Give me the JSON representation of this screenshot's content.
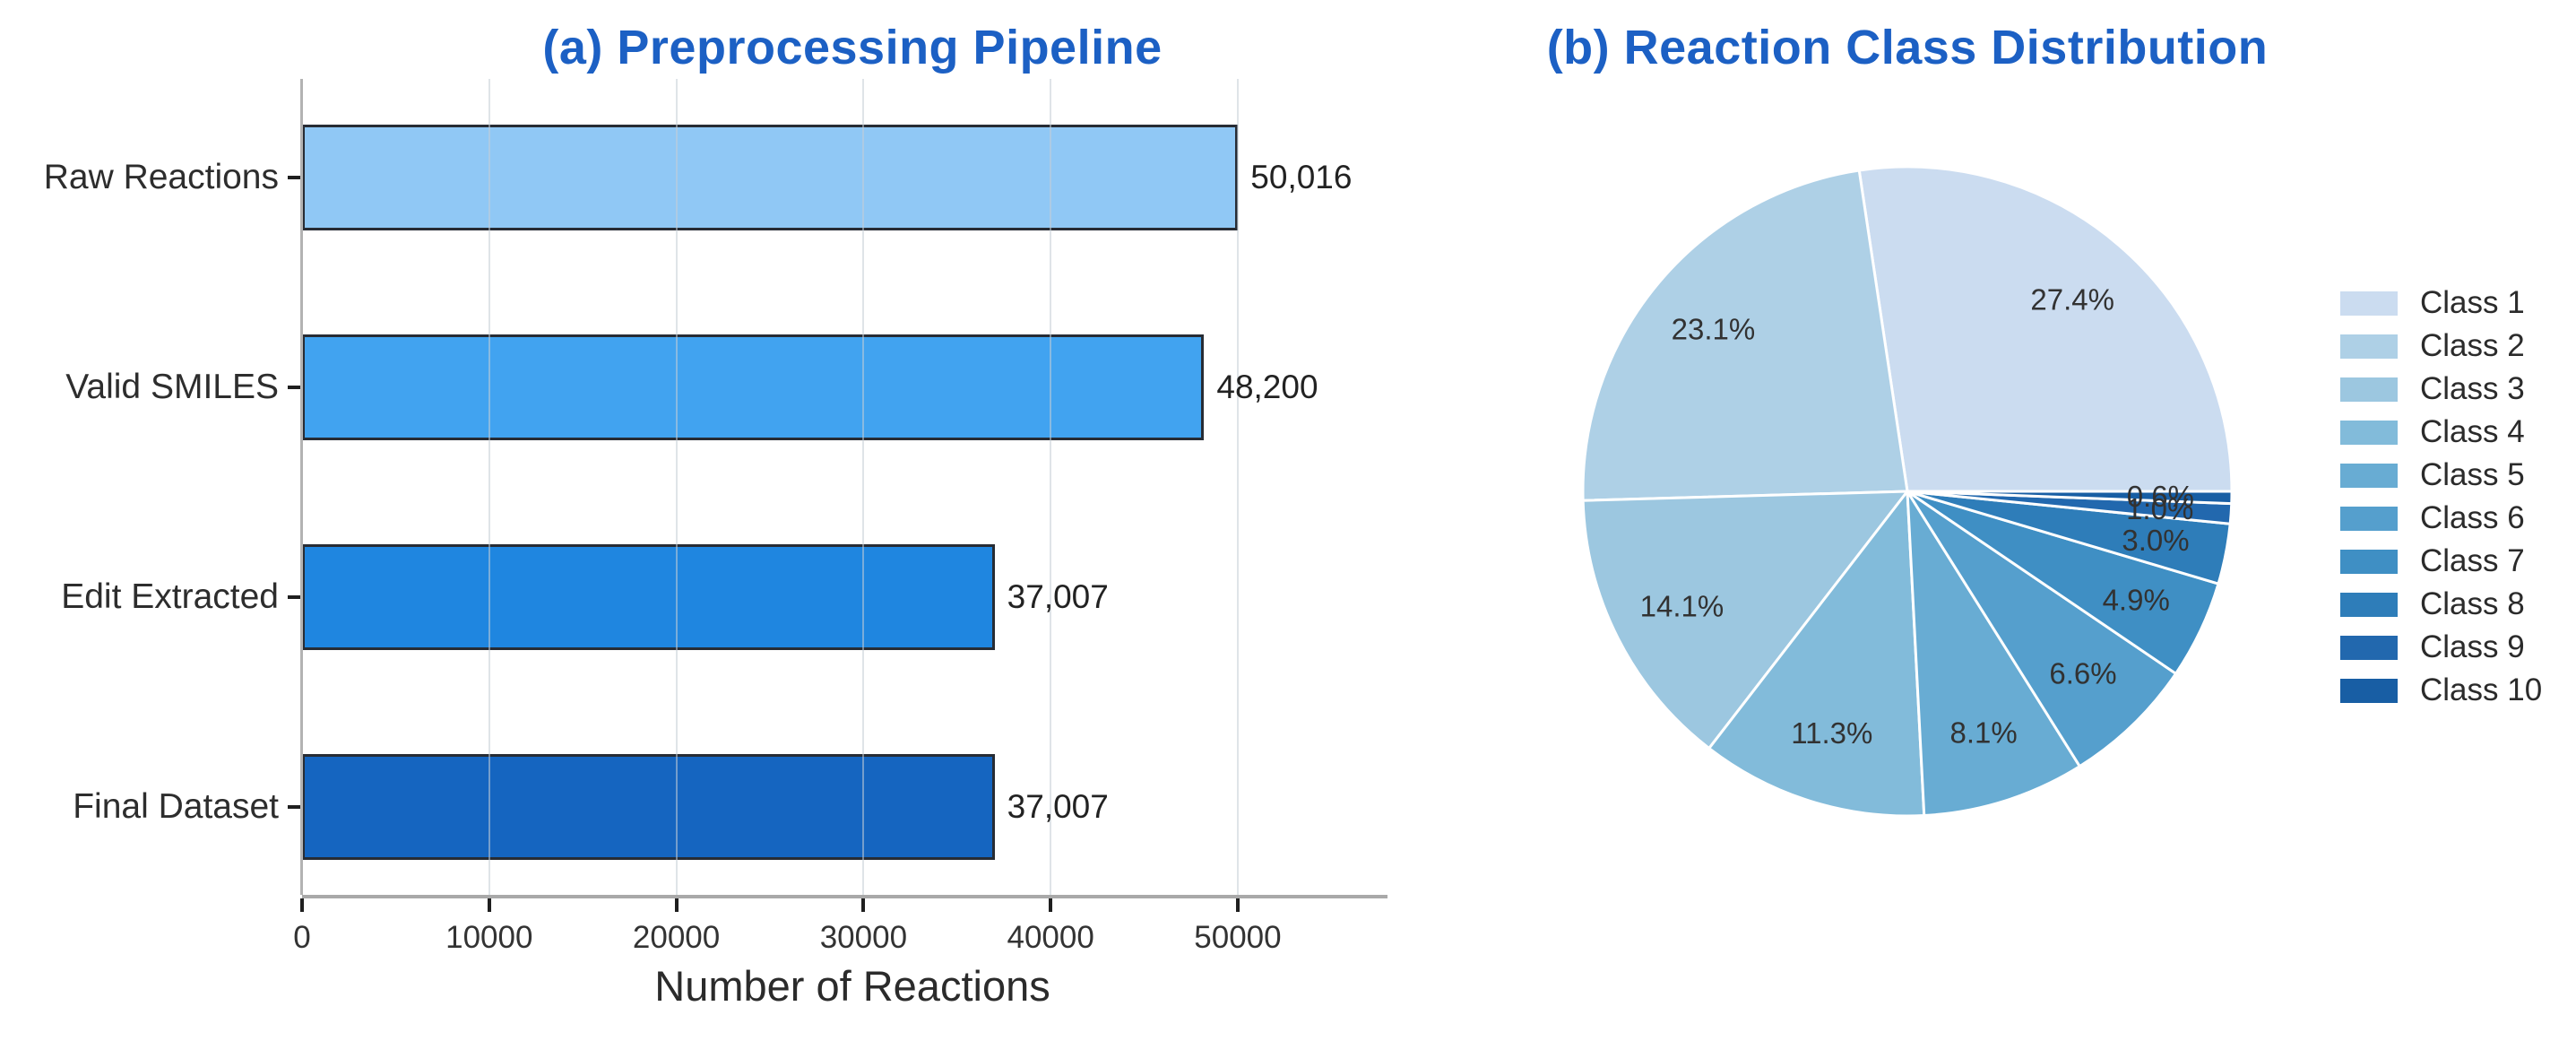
{
  "figure": {
    "background": "#ffffff",
    "title_color": "#1c60c4"
  },
  "chart_data": [
    {
      "type": "bar",
      "title": "(a) Preprocessing Pipeline",
      "orientation": "horizontal",
      "categories": [
        "Raw Reactions",
        "Valid SMILES",
        "Edit Extracted",
        "Final Dataset"
      ],
      "values": [
        50016,
        48200,
        37007,
        37007
      ],
      "value_labels": [
        "50,016",
        "48,200",
        "37,007",
        "37,007"
      ],
      "bar_colors": [
        "#90c8f5",
        "#41a3f0",
        "#1f86e0",
        "#1565c0"
      ],
      "bar_edge_color": "#272c34",
      "xlabel": "Number of Reactions",
      "xticks": [
        0,
        10000,
        20000,
        30000,
        40000,
        50000
      ],
      "xtick_labels": [
        "0",
        "10000",
        "20000",
        "30000",
        "40000",
        "50000"
      ],
      "xlim": [
        0,
        58000
      ],
      "grid": "vertical",
      "legend_position": "none"
    },
    {
      "type": "pie",
      "title": "(b) Reaction Class Distribution",
      "labels": [
        "Class 1",
        "Class 2",
        "Class 3",
        "Class 4",
        "Class 5",
        "Class 6",
        "Class 7",
        "Class 8",
        "Class 9",
        "Class 10"
      ],
      "values": [
        27.4,
        23.1,
        14.1,
        11.3,
        8.1,
        6.6,
        4.9,
        3.0,
        1.0,
        0.6
      ],
      "pct_labels": [
        "27.4%",
        "23.1%",
        "14.1%",
        "11.3%",
        "8.1%",
        "6.6%",
        "4.9%",
        "3.0%",
        "1.0%",
        "0.6%"
      ],
      "colors": [
        "#cbdcf0",
        "#aed0e6",
        "#9cc7e0",
        "#82bbda",
        "#68acd3",
        "#559fcd",
        "#3f8fc4",
        "#2e7db9",
        "#2268ae",
        "#185ea4"
      ],
      "start_angle": 0,
      "direction": "counterclockwise",
      "wedge_edge_color": "#ffffff",
      "legend": {
        "position": "right",
        "entries": [
          "Class 1",
          "Class 2",
          "Class 3",
          "Class 4",
          "Class 5",
          "Class 6",
          "Class 7",
          "Class 8",
          "Class 9",
          "Class 10"
        ]
      }
    }
  ]
}
